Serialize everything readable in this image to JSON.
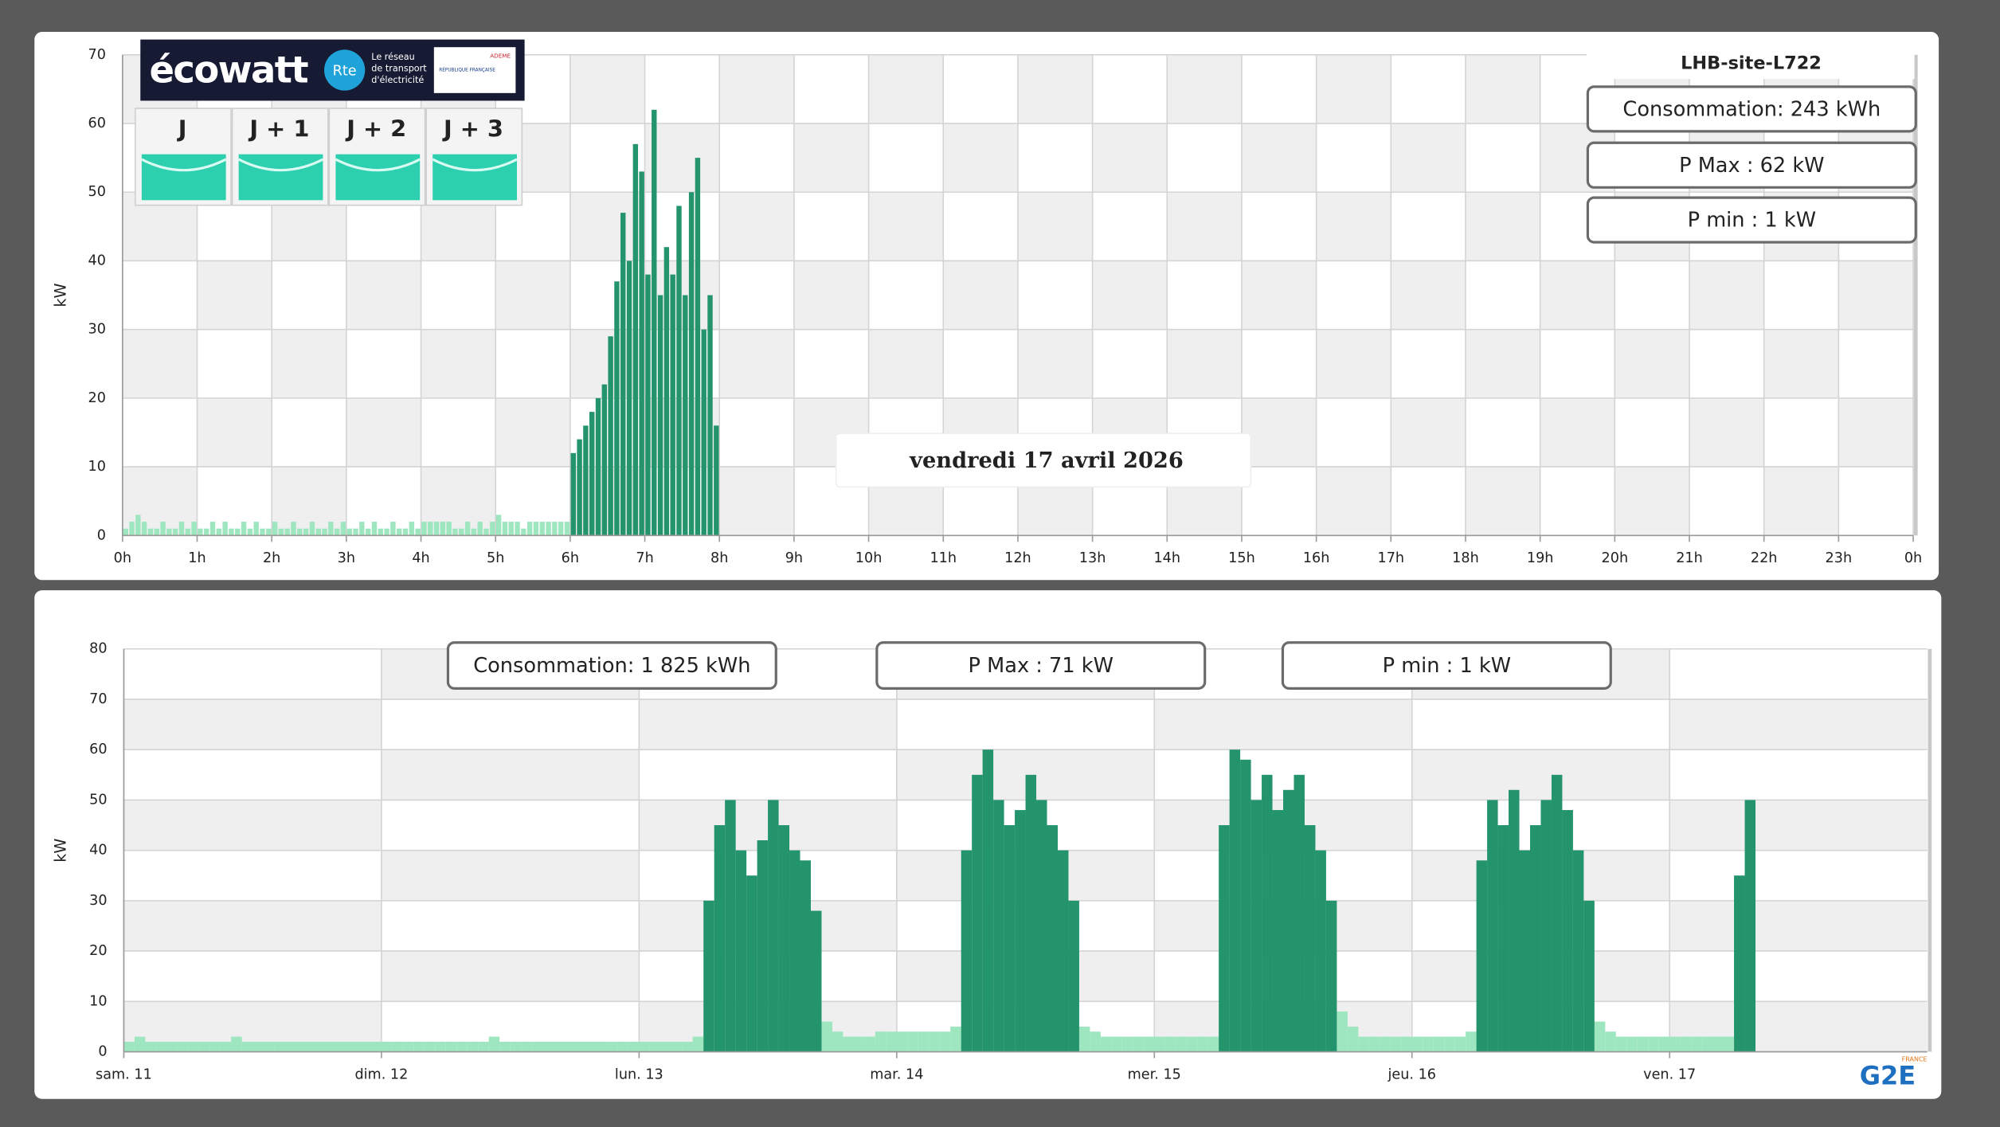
{
  "ecowatt": {
    "logo": "écowatt",
    "rte": "Rte",
    "rte_tagline": [
      "Le réseau",
      "de transport",
      "d'électricité"
    ],
    "republique": "RÉPUBLIQUE FRANÇAISE",
    "ademe": "ADEME",
    "days": [
      "J",
      "J + 1",
      "J + 2",
      "J + 3"
    ]
  },
  "brand": {
    "logo": "G2E",
    "country": "FRANCE"
  },
  "chart_data": [
    {
      "type": "bar",
      "date": "vendredi 17 avril 2026",
      "site": "LHB-site-L722",
      "stats": [
        "Consommation: 243 kWh",
        "P Max :  62 kW",
        "P min : 1 kW"
      ],
      "ylabel": "kW",
      "ylim": [
        0,
        70
      ],
      "yticks": [
        0,
        10,
        20,
        30,
        40,
        50,
        60,
        70
      ],
      "xlim": [
        0,
        288
      ],
      "xticks": [
        {
          "value": 0,
          "label": "0h"
        },
        {
          "value": 12,
          "label": "1h"
        },
        {
          "value": 24,
          "label": "2h"
        },
        {
          "value": 36,
          "label": "3h"
        },
        {
          "value": 48,
          "label": "4h"
        },
        {
          "value": 60,
          "label": "5h"
        },
        {
          "value": 72,
          "label": "6h"
        },
        {
          "value": 84,
          "label": "7h"
        },
        {
          "value": 96,
          "label": "8h"
        },
        {
          "value": 108,
          "label": "9h"
        },
        {
          "value": 120,
          "label": "10h"
        },
        {
          "value": 132,
          "label": "11h"
        },
        {
          "value": 144,
          "label": "12h"
        },
        {
          "value": 156,
          "label": "13h"
        },
        {
          "value": 168,
          "label": "14h"
        },
        {
          "value": 180,
          "label": "15h"
        },
        {
          "value": 192,
          "label": "16h"
        },
        {
          "value": 204,
          "label": "17h"
        },
        {
          "value": 216,
          "label": "18h"
        },
        {
          "value": 228,
          "label": "19h"
        },
        {
          "value": 240,
          "label": "20h"
        },
        {
          "value": 252,
          "label": "21h"
        },
        {
          "value": 264,
          "label": "22h"
        },
        {
          "value": 276,
          "label": "23h"
        },
        {
          "value": 288,
          "label": "0h"
        }
      ],
      "grid": true,
      "series": [
        {
          "color": "#9ee6bf",
          "values": [
            1,
            2,
            3,
            2,
            1,
            1,
            2,
            1,
            1,
            2,
            1,
            2,
            1,
            1,
            2,
            1,
            2,
            1,
            1,
            2,
            1,
            2,
            1,
            1,
            2,
            1,
            1,
            2,
            1,
            1,
            2,
            1,
            1,
            2,
            1,
            2,
            1,
            1,
            2,
            1,
            2,
            1,
            1,
            2,
            1,
            1,
            2,
            1,
            2,
            2,
            2,
            2,
            2,
            1,
            1,
            2,
            1,
            2,
            1,
            2,
            3,
            2,
            2,
            2,
            1,
            2,
            2,
            2,
            2,
            2,
            2,
            2,
            null,
            null,
            null,
            null,
            null,
            null,
            null,
            null,
            null,
            null,
            null,
            null,
            null,
            null,
            null,
            null,
            null,
            null,
            null,
            null,
            null,
            null,
            null,
            null
          ]
        },
        {
          "color": "#23946c",
          "values": [
            null,
            null,
            null,
            null,
            null,
            null,
            null,
            null,
            null,
            null,
            null,
            null,
            null,
            null,
            null,
            null,
            null,
            null,
            null,
            null,
            null,
            null,
            null,
            null,
            null,
            null,
            null,
            null,
            null,
            null,
            null,
            null,
            null,
            null,
            null,
            null,
            null,
            null,
            null,
            null,
            null,
            null,
            null,
            null,
            null,
            null,
            null,
            null,
            null,
            null,
            null,
            null,
            null,
            null,
            null,
            null,
            null,
            null,
            null,
            null,
            null,
            null,
            null,
            null,
            null,
            null,
            null,
            null,
            null,
            null,
            null,
            null,
            12,
            14,
            16,
            18,
            20,
            22,
            29,
            37,
            47,
            40,
            57,
            53,
            38,
            62,
            35,
            42,
            38,
            48,
            35,
            50,
            55,
            30,
            35,
            16
          ]
        }
      ]
    },
    {
      "type": "bar",
      "stats": [
        "Consommation: 1 825 kWh",
        "P Max :  71 kW",
        "P min : 1 kW"
      ],
      "ylabel": "kW",
      "ylim": [
        0,
        80
      ],
      "yticks": [
        0,
        10,
        20,
        30,
        40,
        50,
        60,
        70,
        80
      ],
      "xlim": [
        0,
        168
      ],
      "xticks": [
        {
          "value": 0,
          "label": "sam. 11"
        },
        {
          "value": 24,
          "label": "dim. 12"
        },
        {
          "value": 48,
          "label": "lun. 13"
        },
        {
          "value": 72,
          "label": "mar. 14"
        },
        {
          "value": 96,
          "label": "mer. 15"
        },
        {
          "value": 120,
          "label": "jeu. 16"
        },
        {
          "value": 144,
          "label": "ven. 17"
        }
      ],
      "grid": true,
      "series": [
        {
          "color": "#9ee6bf",
          "values": [
            2,
            3,
            2,
            2,
            2,
            2,
            2,
            2,
            2,
            2,
            3,
            2,
            2,
            2,
            2,
            2,
            2,
            2,
            2,
            2,
            2,
            2,
            2,
            2,
            2,
            2,
            2,
            2,
            2,
            2,
            2,
            2,
            2,
            2,
            3,
            2,
            2,
            2,
            2,
            2,
            2,
            2,
            2,
            2,
            2,
            2,
            2,
            2,
            2,
            2,
            2,
            2,
            2,
            3,
            null,
            null,
            null,
            null,
            null,
            null,
            null,
            null,
            null,
            null,
            null,
            6,
            4,
            3,
            3,
            3,
            4,
            4,
            4,
            4,
            4,
            4,
            4,
            5,
            null,
            null,
            null,
            null,
            null,
            null,
            null,
            null,
            null,
            null,
            null,
            5,
            4,
            3,
            3,
            3,
            3,
            3,
            3,
            3,
            3,
            3,
            3,
            3,
            null,
            null,
            null,
            null,
            null,
            null,
            null,
            null,
            null,
            null,
            null,
            8,
            5,
            3,
            3,
            3,
            3,
            3,
            3,
            3,
            3,
            3,
            3,
            4,
            null,
            null,
            null,
            null,
            null,
            null,
            null,
            null,
            null,
            null,
            null,
            6,
            4,
            3,
            3,
            3,
            3,
            3,
            3,
            3,
            3,
            3,
            3,
            3,
            null,
            null
          ]
        },
        {
          "color": "#23946c",
          "values": [
            null,
            null,
            null,
            null,
            null,
            null,
            null,
            null,
            null,
            null,
            null,
            null,
            null,
            null,
            null,
            null,
            null,
            null,
            null,
            null,
            null,
            null,
            null,
            null,
            null,
            null,
            null,
            null,
            null,
            null,
            null,
            null,
            null,
            null,
            null,
            null,
            null,
            null,
            null,
            null,
            null,
            null,
            null,
            null,
            null,
            null,
            null,
            null,
            null,
            null,
            null,
            null,
            null,
            null,
            30,
            45,
            50,
            40,
            35,
            42,
            50,
            45,
            40,
            38,
            28,
            null,
            null,
            null,
            null,
            null,
            null,
            null,
            null,
            null,
            null,
            null,
            null,
            null,
            40,
            55,
            60,
            50,
            45,
            48,
            55,
            50,
            45,
            40,
            30,
            null,
            null,
            null,
            null,
            null,
            null,
            null,
            null,
            null,
            null,
            null,
            null,
            null,
            45,
            60,
            58,
            50,
            55,
            48,
            52,
            55,
            45,
            40,
            30,
            null,
            null,
            null,
            null,
            null,
            null,
            null,
            null,
            null,
            null,
            null,
            null,
            null,
            38,
            50,
            45,
            52,
            40,
            45,
            50,
            55,
            48,
            40,
            30,
            null,
            null,
            null,
            null,
            null,
            null,
            null,
            null,
            null,
            null,
            null,
            null,
            null,
            35,
            50
          ]
        }
      ]
    }
  ]
}
